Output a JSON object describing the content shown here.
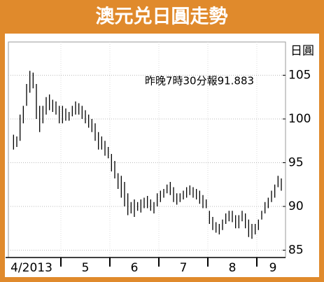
{
  "chart_data": {
    "type": "range-bar",
    "title": "澳元兑日圓走勢",
    "y_label": "日圓",
    "annotation": "昨晚7時30分報91.883",
    "ylim": [
      84,
      109
    ],
    "yticks": [
      85,
      90,
      95,
      100,
      105
    ],
    "grid": true,
    "color": "#000000",
    "months": [
      {
        "label": "4/2013",
        "high": [
          98.2,
          98,
          100.5,
          101.5,
          104,
          105.5,
          105.3,
          104,
          101.5,
          101.5,
          102.5,
          102.8,
          102.2,
          102,
          101.5
        ],
        "low": [
          96.5,
          96.8,
          97.5,
          99.5,
          101.5,
          103,
          103.5,
          100,
          98.5,
          99.5,
          100.5,
          101,
          100.8,
          100.5,
          99.5
        ]
      },
      {
        "label": "5",
        "high": [
          101.5,
          101.2,
          100.8,
          101.5,
          102,
          101.8,
          101.5,
          101,
          100.5,
          100,
          99.5,
          98.5,
          98,
          97.5,
          96.8
        ],
        "low": [
          99.5,
          99.8,
          99.8,
          100.3,
          100.5,
          100.5,
          100,
          99.5,
          99,
          98.5,
          97.5,
          96.5,
          96.5,
          95.8,
          95.5
        ]
      },
      {
        "label": "6",
        "high": [
          96,
          95.2,
          93.8,
          93.5,
          92.8,
          91.5,
          90.5,
          90.8,
          90.5,
          90.8,
          91,
          91.2,
          90.8,
          90.5,
          91.5
        ],
        "low": [
          94,
          93.2,
          92,
          91,
          90,
          89,
          89.2,
          88.8,
          89.5,
          89.3,
          89.8,
          89.8,
          89.5,
          89.2,
          90
        ]
      },
      {
        "label": "7",
        "high": [
          91.8,
          92,
          92.5,
          92.8,
          92.2,
          91.5,
          91.5,
          91.8,
          92.2,
          92.4,
          92.2,
          92,
          91.8,
          91.3,
          90.8
        ],
        "low": [
          90.5,
          91,
          91.5,
          91.3,
          90.5,
          90.2,
          90.5,
          90.8,
          91,
          91.3,
          91,
          90.8,
          90.3,
          89.8,
          89.8
        ]
      },
      {
        "label": "8",
        "high": [
          89.5,
          88.8,
          88.2,
          88,
          88.5,
          89.2,
          89.5,
          89.5,
          89,
          89,
          89.5,
          89.2,
          88.5,
          88,
          88
        ],
        "low": [
          88,
          87.3,
          87,
          86.8,
          87.3,
          88,
          88.3,
          88.2,
          87.5,
          87.5,
          88.3,
          87.5,
          86.5,
          86.3,
          86.8
        ]
      },
      {
        "label": "9",
        "high": [
          88.5,
          89.5,
          90.5,
          91,
          91.8,
          92.5,
          93.5,
          93.2
        ],
        "low": [
          87.3,
          88.5,
          89.2,
          89.8,
          90.5,
          91,
          92.2,
          91.8
        ]
      }
    ]
  }
}
